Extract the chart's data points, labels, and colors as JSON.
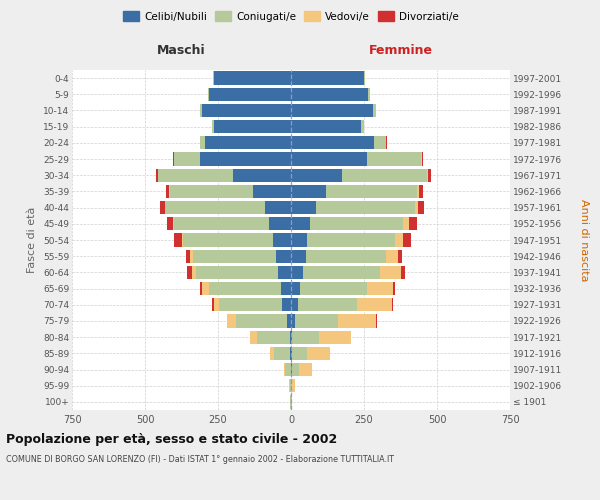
{
  "age_groups": [
    "100+",
    "95-99",
    "90-94",
    "85-89",
    "80-84",
    "75-79",
    "70-74",
    "65-69",
    "60-64",
    "55-59",
    "50-54",
    "45-49",
    "40-44",
    "35-39",
    "30-34",
    "25-29",
    "20-24",
    "15-19",
    "10-14",
    "5-9",
    "0-4"
  ],
  "birth_years": [
    "≤ 1901",
    "1902-1906",
    "1907-1911",
    "1912-1916",
    "1917-1921",
    "1922-1926",
    "1927-1931",
    "1932-1936",
    "1937-1941",
    "1942-1946",
    "1947-1951",
    "1952-1956",
    "1957-1961",
    "1962-1966",
    "1967-1971",
    "1972-1976",
    "1977-1981",
    "1982-1986",
    "1987-1991",
    "1992-1996",
    "1997-2001"
  ],
  "males": {
    "celibe": [
      0,
      0,
      0,
      2,
      5,
      15,
      30,
      35,
      45,
      50,
      60,
      75,
      90,
      130,
      200,
      310,
      295,
      265,
      305,
      280,
      265
    ],
    "coniugato": [
      2,
      5,
      20,
      55,
      110,
      175,
      215,
      245,
      280,
      285,
      310,
      325,
      340,
      285,
      255,
      90,
      15,
      5,
      5,
      5,
      2
    ],
    "vedovo": [
      0,
      2,
      5,
      15,
      25,
      30,
      20,
      25,
      15,
      10,
      5,
      5,
      3,
      3,
      2,
      2,
      1,
      0,
      0,
      0,
      0
    ],
    "divorziato": [
      0,
      0,
      0,
      0,
      0,
      0,
      5,
      5,
      15,
      15,
      25,
      20,
      15,
      10,
      5,
      3,
      2,
      0,
      0,
      0,
      0
    ]
  },
  "females": {
    "nubile": [
      0,
      0,
      2,
      5,
      5,
      15,
      25,
      30,
      40,
      50,
      55,
      65,
      85,
      120,
      175,
      260,
      285,
      240,
      280,
      265,
      250
    ],
    "coniugata": [
      2,
      5,
      25,
      50,
      90,
      145,
      200,
      230,
      265,
      275,
      300,
      320,
      340,
      310,
      290,
      185,
      40,
      10,
      10,
      5,
      3
    ],
    "vedova": [
      2,
      10,
      45,
      80,
      110,
      130,
      120,
      90,
      70,
      40,
      30,
      20,
      10,
      8,
      5,
      3,
      2,
      1,
      0,
      0,
      0
    ],
    "divorziata": [
      0,
      0,
      0,
      0,
      0,
      5,
      5,
      5,
      15,
      15,
      25,
      25,
      20,
      15,
      10,
      5,
      2,
      0,
      0,
      0,
      0
    ]
  },
  "colors": {
    "celibe_nubile": "#3a6ea5",
    "coniugato_a": "#b5c99a",
    "vedovo_a": "#f5c67e",
    "divorziato_a": "#d03030"
  },
  "title": "Popolazione per età, sesso e stato civile - 2002",
  "subtitle": "COMUNE DI BORGO SAN LORENZO (FI) - Dati ISTAT 1° gennaio 2002 - Elaborazione TUTTITALIA.IT",
  "xlabel_maschi": "Maschi",
  "xlabel_femmine": "Femmine",
  "ylabel_left": "Fasce di età",
  "ylabel_right": "Anni di nascita",
  "xlim": 750,
  "background_color": "#eeeeee",
  "bar_bg_color": "#ffffff",
  "grid_color": "#cccccc"
}
